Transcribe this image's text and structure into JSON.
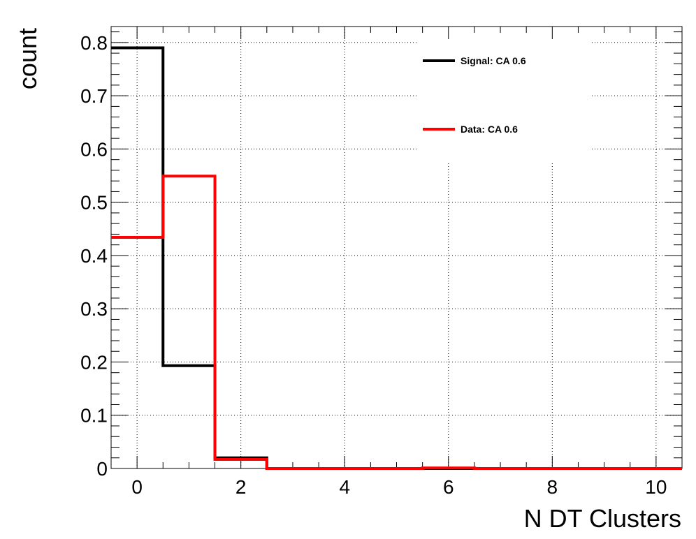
{
  "chart_data": {
    "type": "line",
    "xlabel": "N DT Clusters",
    "ylabel": "count",
    "xlim": [
      -0.5,
      10.5
    ],
    "ylim": [
      0,
      0.83
    ],
    "grid": true,
    "legend_position": "top-right",
    "x_ticks": [
      "0",
      "2",
      "4",
      "6",
      "8",
      "10"
    ],
    "y_ticks": [
      "0",
      "0.1",
      "0.2",
      "0.3",
      "0.4",
      "0.5",
      "0.6",
      "0.7",
      "0.8"
    ],
    "bin_edges": [
      -0.5,
      0.5,
      1.5,
      2.5,
      3.5,
      4.5,
      5.5,
      6.5,
      7.5,
      8.5,
      9.5,
      10.5
    ],
    "series": [
      {
        "name": "Signal: CA 0.6",
        "color": "#000000",
        "values": [
          0.79,
          0.193,
          0.02,
          0,
          0,
          0,
          0,
          0,
          0,
          0,
          0
        ]
      },
      {
        "name": "Data: CA 0.6",
        "color": "#ff0000",
        "values": [
          0.434,
          0.549,
          0.017,
          0,
          0,
          0,
          0.001,
          0,
          0,
          0,
          0
        ]
      }
    ]
  }
}
